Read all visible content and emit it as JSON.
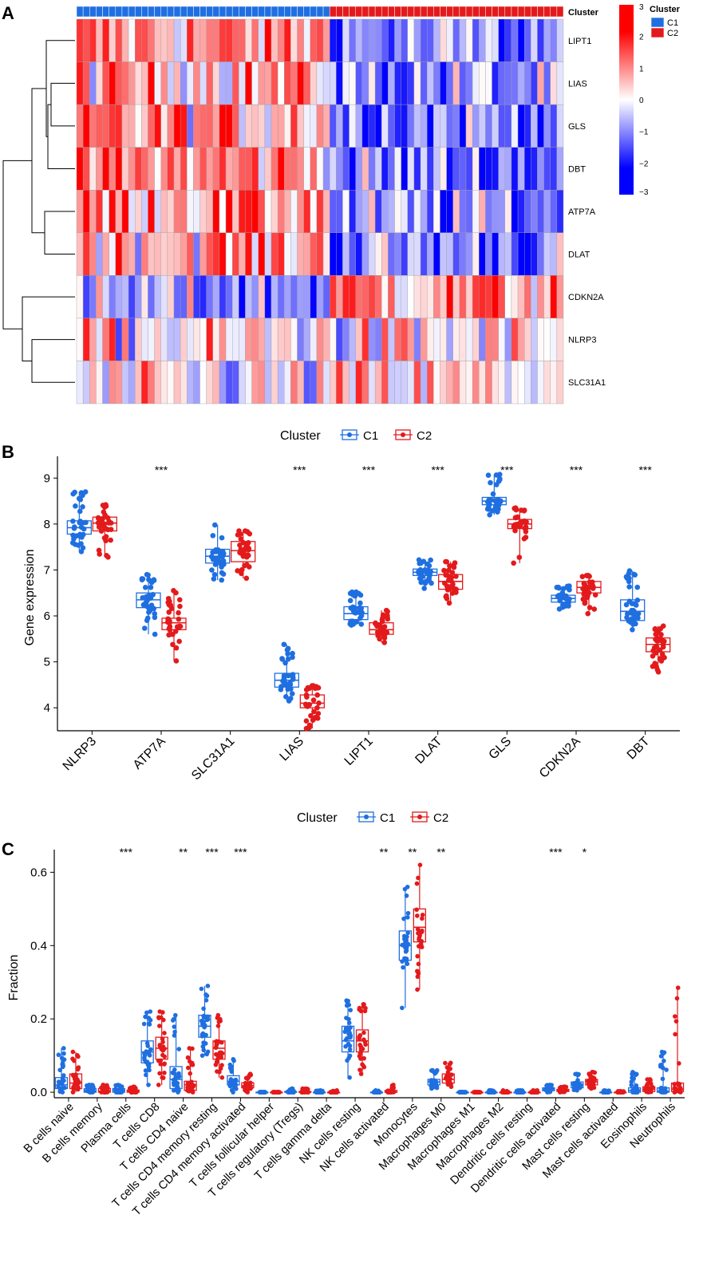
{
  "panels": {
    "A": {
      "label": "A"
    },
    "B": {
      "label": "B"
    },
    "C": {
      "label": "C"
    }
  },
  "colors": {
    "blue": "#1f6fe0",
    "red": "#e31a1c",
    "heat_low": "#0000ff",
    "heat_mid": "#ffffff",
    "heat_high": "#ff0000",
    "heat_border": "#a0a0a0"
  },
  "chart_data": [
    {
      "type": "heatmap",
      "panel": "A",
      "annotation_label": "Cluster",
      "legend": {
        "title": "Cluster",
        "entries": [
          "C1",
          "C2"
        ],
        "colorbar_ticks": [
          "3",
          "2",
          "1",
          "0",
          "−1",
          "−2",
          "−3"
        ],
        "range": [
          -3,
          3
        ]
      },
      "rows": [
        "LIPT1",
        "LIAS",
        "GLS",
        "DBT",
        "ATP7A",
        "DLAT",
        "CDKN2A",
        "NLRP3",
        "SLC31A1"
      ],
      "columns_per_cluster": {
        "C1": 39,
        "C2": 36
      },
      "cluster_mean_z": {
        "LIPT1": [
          0.9,
          -1.1
        ],
        "LIAS": [
          0.8,
          -1.0
        ],
        "GLS": [
          0.9,
          -1.0
        ],
        "DBT": [
          1.0,
          -1.2
        ],
        "ATP7A": [
          1.1,
          -1.1
        ],
        "DLAT": [
          0.9,
          -1.0
        ],
        "CDKN2A": [
          -0.9,
          1.0
        ],
        "NLRP3": [
          0.1,
          0.0
        ],
        "SLC31A1": [
          -0.2,
          0.2
        ]
      },
      "row_dendrogram_order": [
        "LIPT1",
        "LIAS",
        "GLS",
        "DBT",
        "ATP7A",
        "DLAT",
        "CDKN2A",
        "NLRP3",
        "SLC31A1"
      ]
    },
    {
      "type": "box",
      "panel": "B",
      "legend_title": "Cluster",
      "series_names": [
        "C1",
        "C2"
      ],
      "ylabel": "Gene expression",
      "ylim": [
        3.5,
        9.3
      ],
      "yticks": [
        4,
        5,
        6,
        7,
        8,
        9
      ],
      "categories": [
        "NLRP3",
        "ATP7A",
        "SLC31A1",
        "LIAS",
        "LIPT1",
        "DLAT",
        "GLS",
        "CDKN2A",
        "DBT"
      ],
      "significance": [
        "",
        "***",
        "",
        "***",
        "***",
        "***",
        "***",
        "***",
        "***"
      ],
      "series": [
        {
          "name": "C1",
          "stats": [
            [
              7.4,
              7.78,
              7.92,
              8.07,
              8.7
            ],
            [
              5.6,
              6.18,
              6.35,
              6.5,
              6.9
            ],
            [
              6.78,
              7.15,
              7.3,
              7.45,
              7.98
            ],
            [
              4.15,
              4.45,
              4.6,
              4.75,
              5.38
            ],
            [
              5.8,
              5.92,
              6.05,
              6.2,
              6.52
            ],
            [
              6.6,
              6.88,
              6.95,
              7.02,
              7.22
            ],
            [
              8.2,
              8.42,
              8.5,
              8.58,
              9.08
            ],
            [
              6.15,
              6.3,
              6.38,
              6.45,
              6.65
            ],
            [
              5.7,
              5.9,
              6.1,
              6.35,
              6.98
            ]
          ]
        },
        {
          "name": "C2",
          "stats": [
            [
              7.28,
              7.85,
              8.02,
              8.15,
              8.42
            ],
            [
              5.02,
              5.7,
              5.85,
              5.95,
              6.55
            ],
            [
              6.82,
              7.18,
              7.42,
              7.62,
              7.85
            ],
            [
              3.55,
              4.0,
              4.1,
              4.28,
              4.48
            ],
            [
              5.42,
              5.6,
              5.7,
              5.85,
              6.12
            ],
            [
              6.28,
              6.58,
              6.75,
              6.9,
              7.18
            ],
            [
              7.15,
              7.9,
              8.0,
              8.1,
              8.35
            ],
            [
              6.05,
              6.5,
              6.62,
              6.75,
              6.88
            ],
            [
              4.78,
              5.22,
              5.38,
              5.52,
              5.78
            ]
          ]
        }
      ]
    },
    {
      "type": "box",
      "panel": "C",
      "legend_title": "Cluster",
      "series_names": [
        "C1",
        "C2"
      ],
      "ylabel": "Fraction",
      "ylim": [
        -0.015,
        0.64
      ],
      "yticks": [
        "0.0",
        "0.2",
        "0.4",
        "0.6"
      ],
      "categories": [
        "B cells naive",
        "B cells memory",
        "Plasma cells",
        "T cells CD8",
        "T cells CD4 naive",
        "T cells CD4 memory resting",
        "T cells CD4 memory activated",
        "T cells follicular helper",
        "T cells regulatory (Tregs)",
        "T cells gamma delta",
        "NK cells resting",
        "NK cells activated",
        "Monocytes",
        "Macrophages M0",
        "Macrophages M1",
        "Macrophages M2",
        "Dendritic cells resting",
        "Dendritic cells activated",
        "Mast cells resting",
        "Mast cells activated",
        "Eosinophils",
        "Neutrophils"
      ],
      "significance": [
        "",
        "",
        "***",
        "",
        "**",
        "***",
        "***",
        "",
        "",
        "",
        "",
        "**",
        "**",
        "**",
        "",
        "",
        "",
        "***",
        "*",
        "",
        "",
        ""
      ],
      "series": [
        {
          "name": "C1",
          "stats": [
            [
              0,
              0.01,
              0.02,
              0.04,
              0.12
            ],
            [
              0,
              0,
              0.003,
              0.01,
              0.02
            ],
            [
              0,
              0,
              0.004,
              0.01,
              0.02
            ],
            [
              0.02,
              0.08,
              0.11,
              0.14,
              0.22
            ],
            [
              0,
              0.01,
              0.035,
              0.07,
              0.21
            ],
            [
              0.1,
              0.15,
              0.18,
              0.21,
              0.29
            ],
            [
              0,
              0.02,
              0.03,
              0.045,
              0.09
            ],
            [
              0,
              0,
              0,
              0,
              0
            ],
            [
              0,
              0,
              0,
              0.002,
              0.01
            ],
            [
              0,
              0,
              0,
              0,
              0.005
            ],
            [
              0.04,
              0.11,
              0.14,
              0.18,
              0.25
            ],
            [
              0,
              0,
              0,
              0,
              0.005
            ],
            [
              0.23,
              0.36,
              0.4,
              0.44,
              0.56
            ],
            [
              0.01,
              0.02,
              0.028,
              0.035,
              0.06
            ],
            [
              0,
              0,
              0,
              0,
              0
            ],
            [
              0,
              0,
              0,
              0,
              0.005
            ],
            [
              0,
              0,
              0,
              0,
              0.005
            ],
            [
              0,
              0.004,
              0.008,
              0.012,
              0.02
            ],
            [
              0.005,
              0.012,
              0.02,
              0.028,
              0.05
            ],
            [
              0,
              0,
              0,
              0,
              0.005
            ],
            [
              0,
              0,
              0.005,
              0.012,
              0.055
            ],
            [
              0,
              0,
              0.002,
              0.012,
              0.11
            ]
          ]
        },
        {
          "name": "C2",
          "stats": [
            [
              0,
              0.01,
              0.025,
              0.05,
              0.11
            ],
            [
              0,
              0,
              0.003,
              0.01,
              0.02
            ],
            [
              0,
              0,
              0.002,
              0.006,
              0.015
            ],
            [
              0.02,
              0.09,
              0.12,
              0.15,
              0.22
            ],
            [
              0,
              0.005,
              0.02,
              0.03,
              0.12
            ],
            [
              0.04,
              0.09,
              0.12,
              0.14,
              0.21
            ],
            [
              0,
              0.012,
              0.018,
              0.026,
              0.05
            ],
            [
              0,
              0,
              0,
              0,
              0
            ],
            [
              0,
              0,
              0,
              0.002,
              0.01
            ],
            [
              0,
              0,
              0,
              0,
              0.005
            ],
            [
              0.05,
              0.11,
              0.14,
              0.17,
              0.24
            ],
            [
              0,
              0,
              0,
              0.005,
              0.02
            ],
            [
              0.28,
              0.41,
              0.45,
              0.5,
              0.62
            ],
            [
              0.015,
              0.025,
              0.035,
              0.05,
              0.08
            ],
            [
              0,
              0,
              0,
              0,
              0
            ],
            [
              0,
              0,
              0,
              0,
              0.005
            ],
            [
              0,
              0,
              0,
              0,
              0.005
            ],
            [
              0,
              0.002,
              0.005,
              0.008,
              0.015
            ],
            [
              0.01,
              0.02,
              0.028,
              0.035,
              0.055
            ],
            [
              0,
              0,
              0,
              0,
              0.003
            ],
            [
              0,
              0.002,
              0.008,
              0.015,
              0.035
            ],
            [
              0,
              0.002,
              0.008,
              0.025,
              0.285
            ]
          ]
        }
      ]
    }
  ]
}
